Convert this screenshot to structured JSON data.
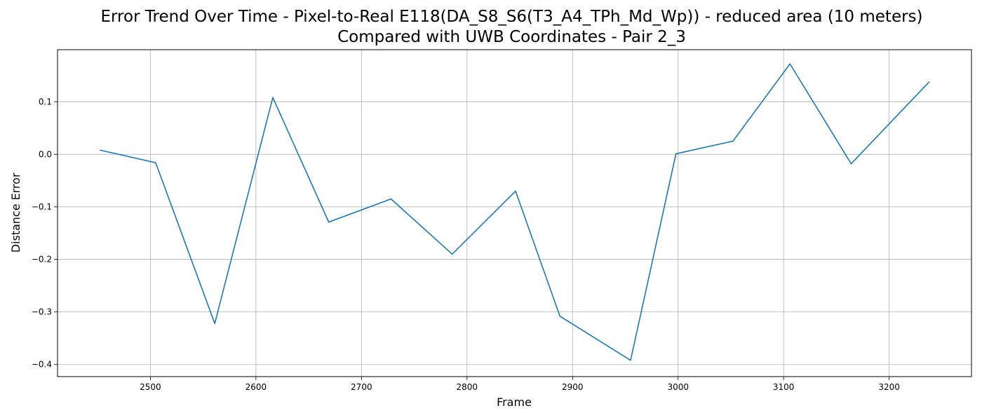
{
  "chart_data": {
    "type": "line",
    "title_line1": "Error Trend Over Time - Pixel-to-Real E118(DA_S8_S6(T3_A4_TPh_Md_Wp)) - reduced area (10 meters)",
    "title_line2": "Compared with UWB Coordinates - Pair 2_3",
    "xlabel": "Frame",
    "ylabel": "Distance Error",
    "xlim": [
      2412,
      3278
    ],
    "ylim": [
      -0.423,
      0.199
    ],
    "xticks": [
      2500,
      2600,
      2700,
      2800,
      2900,
      3000,
      3100,
      3200
    ],
    "yticks": [
      -0.4,
      -0.3,
      -0.2,
      -0.1,
      0.0,
      0.1
    ],
    "ytick_labels": [
      "−0.4",
      "−0.3",
      "−0.2",
      "−0.1",
      "0.0",
      "0.1"
    ],
    "grid": true,
    "series": [
      {
        "color": "#1f77b4",
        "x": [
          2452,
          2505,
          2561,
          2616,
          2669,
          2728,
          2786,
          2846,
          2888,
          2955,
          2998,
          3052,
          3106,
          3164,
          3238
        ],
        "y": [
          0.008,
          -0.016,
          -0.322,
          0.108,
          -0.129,
          -0.085,
          -0.19,
          -0.07,
          -0.308,
          -0.392,
          0.001,
          0.025,
          0.172,
          -0.018,
          0.138
        ]
      }
    ]
  }
}
